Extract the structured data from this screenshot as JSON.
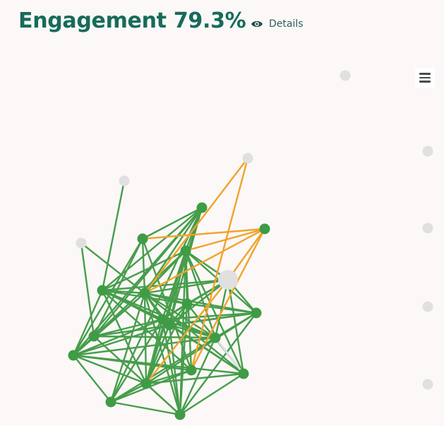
{
  "header": {
    "title": "Engagement 79.3%",
    "details_label": "Details",
    "details_icon": "eye-icon"
  },
  "menu": {
    "icon": "hamburger-menu-icon"
  },
  "colors": {
    "title": "#176b5a",
    "engaged_node": "#3f9b45",
    "engaged_edge": "#469d4b",
    "bridge_edge": "#f0a32a",
    "inactive_node": "#e0e0e0",
    "background": "#fbf8f7"
  },
  "graph": {
    "nodes": [
      {
        "id": "n1",
        "status": "active"
      },
      {
        "id": "n2",
        "status": "active"
      },
      {
        "id": "n3",
        "status": "active"
      },
      {
        "id": "n4",
        "status": "active"
      },
      {
        "id": "n5",
        "status": "active"
      },
      {
        "id": "n6",
        "status": "active"
      },
      {
        "id": "n7",
        "status": "active"
      },
      {
        "id": "n8",
        "status": "active"
      },
      {
        "id": "n9",
        "status": "active"
      },
      {
        "id": "n10",
        "status": "active"
      },
      {
        "id": "n11",
        "status": "active"
      },
      {
        "id": "n12",
        "status": "active"
      },
      {
        "id": "n13",
        "status": "active"
      },
      {
        "id": "n14",
        "status": "active"
      },
      {
        "id": "n15",
        "status": "active"
      },
      {
        "id": "n16",
        "status": "active"
      },
      {
        "id": "n17",
        "status": "active"
      },
      {
        "id": "n18",
        "status": "active"
      },
      {
        "id": "hub",
        "status": "inactive"
      },
      {
        "id": "i1",
        "status": "inactive"
      },
      {
        "id": "i2",
        "status": "inactive"
      },
      {
        "id": "i3",
        "status": "inactive"
      },
      {
        "id": "i4",
        "status": "inactive"
      },
      {
        "id": "i5",
        "status": "inactive"
      },
      {
        "id": "i6",
        "status": "inactive"
      },
      {
        "id": "i7",
        "status": "inactive"
      },
      {
        "id": "i8",
        "status": "inactive"
      },
      {
        "id": "i9",
        "status": "inactive"
      }
    ],
    "edges": [
      [
        "n1",
        "n2",
        "active"
      ],
      [
        "n1",
        "n3",
        "active"
      ],
      [
        "n1",
        "n4",
        "active"
      ],
      [
        "n1",
        "n5",
        "active"
      ],
      [
        "n1",
        "n6",
        "active"
      ],
      [
        "n1",
        "n7",
        "active"
      ],
      [
        "n1",
        "n8",
        "active"
      ],
      [
        "n1",
        "n9",
        "active"
      ],
      [
        "n1",
        "n10",
        "active"
      ],
      [
        "n2",
        "n4",
        "active"
      ],
      [
        "n2",
        "n5",
        "active"
      ],
      [
        "n2",
        "n6",
        "active"
      ],
      [
        "n2",
        "n8",
        "active"
      ],
      [
        "n2",
        "n9",
        "active"
      ],
      [
        "n2",
        "n11",
        "active"
      ],
      [
        "n2",
        "n12",
        "active"
      ],
      [
        "n2",
        "n13",
        "active"
      ],
      [
        "n2",
        "n14",
        "active"
      ],
      [
        "n2",
        "n15",
        "active"
      ],
      [
        "n2",
        "n16",
        "active"
      ],
      [
        "n2",
        "n17",
        "active"
      ],
      [
        "n2",
        "hub",
        "active"
      ],
      [
        "n2",
        "n18",
        "bridge"
      ],
      [
        "n3",
        "n4",
        "active"
      ],
      [
        "n3",
        "n8",
        "active"
      ],
      [
        "n3",
        "n12",
        "active"
      ],
      [
        "n3",
        "n7",
        "active"
      ],
      [
        "n4",
        "n5",
        "active"
      ],
      [
        "n4",
        "n6",
        "active"
      ],
      [
        "n4",
        "n7",
        "active"
      ],
      [
        "n4",
        "n8",
        "active"
      ],
      [
        "n4",
        "n9",
        "active"
      ],
      [
        "n4",
        "n10",
        "active"
      ],
      [
        "n4",
        "n11",
        "active"
      ],
      [
        "n4",
        "n13",
        "active"
      ],
      [
        "n4",
        "n14",
        "active"
      ],
      [
        "n4",
        "n15",
        "active"
      ],
      [
        "n4",
        "n16",
        "active"
      ],
      [
        "n4",
        "n17",
        "active"
      ],
      [
        "n4",
        "hub",
        "active"
      ],
      [
        "n5",
        "n6",
        "active"
      ],
      [
        "n5",
        "n8",
        "active"
      ],
      [
        "n5",
        "n9",
        "active"
      ],
      [
        "n5",
        "n14",
        "active"
      ],
      [
        "n5",
        "n15",
        "active"
      ],
      [
        "n5",
        "n17",
        "active"
      ],
      [
        "n5",
        "hub",
        "active"
      ],
      [
        "n6",
        "n8",
        "active"
      ],
      [
        "n6",
        "n9",
        "active"
      ],
      [
        "n6",
        "n11",
        "active"
      ],
      [
        "n6",
        "n13",
        "active"
      ],
      [
        "n6",
        "n14",
        "active"
      ],
      [
        "n6",
        "n15",
        "active"
      ],
      [
        "n6",
        "n16",
        "active"
      ],
      [
        "n6",
        "n17",
        "active"
      ],
      [
        "n6",
        "hub",
        "active"
      ],
      [
        "n7",
        "n8",
        "active"
      ],
      [
        "n7",
        "n14",
        "active"
      ],
      [
        "n7",
        "n15",
        "active"
      ],
      [
        "n7",
        "n11",
        "active"
      ],
      [
        "n7",
        "n16",
        "active"
      ],
      [
        "n8",
        "n9",
        "active"
      ],
      [
        "n8",
        "n14",
        "active"
      ],
      [
        "n8",
        "n15",
        "active"
      ],
      [
        "n8",
        "n10",
        "active"
      ],
      [
        "n8",
        "n13",
        "active"
      ],
      [
        "n9",
        "n10",
        "active"
      ],
      [
        "n9",
        "n11",
        "active"
      ],
      [
        "n9",
        "n12",
        "active"
      ],
      [
        "n9",
        "n13",
        "active"
      ],
      [
        "n9",
        "n15",
        "active"
      ],
      [
        "n9",
        "n16",
        "active"
      ],
      [
        "n9",
        "n17",
        "active"
      ],
      [
        "n10",
        "n12",
        "active"
      ],
      [
        "n10",
        "n14",
        "active"
      ],
      [
        "n10",
        "n11",
        "active"
      ],
      [
        "n10",
        "n15",
        "active"
      ],
      [
        "n11",
        "n13",
        "active"
      ],
      [
        "n11",
        "n14",
        "active"
      ],
      [
        "n11",
        "n15",
        "active"
      ],
      [
        "n11",
        "n16",
        "active"
      ],
      [
        "n11",
        "n17",
        "active"
      ],
      [
        "n12",
        "n5",
        "active"
      ],
      [
        "n12",
        "n8",
        "active"
      ],
      [
        "n13",
        "n15",
        "active"
      ],
      [
        "n13",
        "n17",
        "active"
      ],
      [
        "n13",
        "hub",
        "active"
      ],
      [
        "n13",
        "n14",
        "inactive"
      ],
      [
        "n14",
        "n15",
        "active"
      ],
      [
        "n14",
        "hub",
        "active"
      ],
      [
        "n14",
        "n16",
        "active"
      ],
      [
        "n15",
        "n16",
        "active"
      ],
      [
        "n15",
        "n17",
        "active"
      ],
      [
        "n15",
        "hub",
        "active"
      ],
      [
        "n16",
        "hub",
        "active"
      ],
      [
        "n16",
        "n17",
        "active"
      ],
      [
        "n17",
        "hub",
        "active"
      ],
      [
        "n18",
        "n3",
        "bridge"
      ],
      [
        "n18",
        "n4",
        "bridge"
      ],
      [
        "n18",
        "hub",
        "bridge"
      ],
      [
        "n18",
        "n12",
        "bridge"
      ],
      [
        "hub",
        "n9",
        "bridge"
      ],
      [
        "i1",
        "n12",
        "bridge"
      ],
      [
        "i1",
        "n4",
        "bridge"
      ],
      [
        "i2",
        "n5",
        "active"
      ],
      [
        "i3",
        "n7",
        "active"
      ],
      [
        "i3",
        "n4",
        "active"
      ]
    ]
  }
}
